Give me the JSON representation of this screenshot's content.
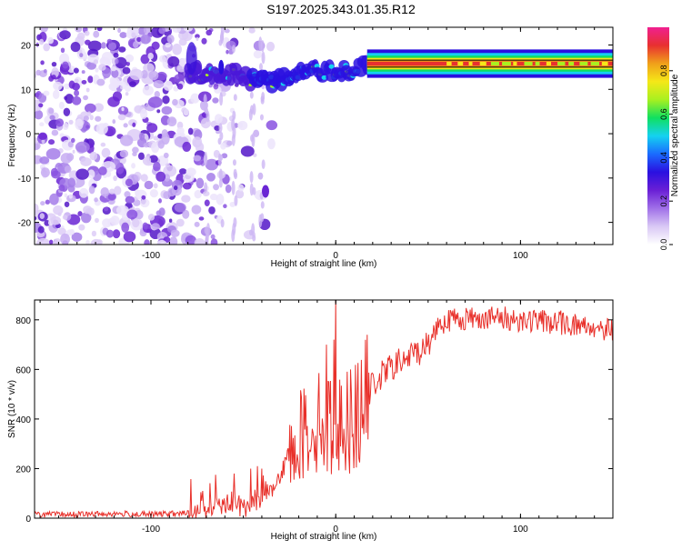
{
  "title": "S197.2025.343.01.35.R12",
  "colors": {
    "snr_line": "#e8302a",
    "colormap": [
      "#ffffff",
      "#d9c8f5",
      "#a070e8",
      "#6a1fd6",
      "#2a10e0",
      "#1a6bff",
      "#14d2f0",
      "#10e060",
      "#a8f020",
      "#f5e818",
      "#f0a01a",
      "#e83030",
      "#f02090"
    ]
  },
  "chart_data": [
    {
      "type": "heatmap",
      "name": "spectrogram",
      "title": "S197.2025.343.01.35.R12",
      "xlabel": "Height of straight line (km)",
      "ylabel": "Frequency (Hz)",
      "xlim": [
        -163,
        150
      ],
      "ylim": [
        -25,
        24
      ],
      "xticks": [
        -100,
        0,
        100
      ],
      "yticks": [
        -20,
        -10,
        0,
        10,
        20
      ],
      "xtick_labels": [
        "-100",
        "0",
        "100"
      ],
      "ytick_labels": [
        "-20",
        "-10",
        "0",
        "10",
        "20"
      ],
      "ridge": [
        {
          "x": -55,
          "y": 13.5
        },
        {
          "x": -40,
          "y": 11.5
        },
        {
          "x": -28,
          "y": 12.5
        },
        {
          "x": -20,
          "y": 13.5
        },
        {
          "x": -10,
          "y": 14.0
        },
        {
          "x": 0,
          "y": 13.5
        },
        {
          "x": 10,
          "y": 14.5
        },
        {
          "x": 18,
          "y": 16.0
        },
        {
          "x": 50,
          "y": 15.8
        },
        {
          "x": 100,
          "y": 15.8
        },
        {
          "x": 150,
          "y": 15.5
        }
      ],
      "colorbar": {
        "label": "Normalized spectral amplitude",
        "range": [
          0,
          1
        ],
        "ticks": [
          0.0,
          0.2,
          0.4,
          0.6,
          0.8
        ],
        "tick_labels": [
          "0.0",
          "0.2",
          "0.4",
          "0.6",
          "0.8"
        ]
      }
    },
    {
      "type": "line",
      "name": "snr",
      "xlabel": "Height of straight line (km)",
      "ylabel": "SNR (10 * v/v)",
      "xlim": [
        -163,
        150
      ],
      "ylim": [
        0,
        880
      ],
      "xticks": [
        -100,
        0,
        100
      ],
      "yticks": [
        0,
        200,
        400,
        600,
        800
      ],
      "xtick_labels": [
        "-100",
        "0",
        "100"
      ],
      "ytick_labels": [
        "0",
        "200",
        "400",
        "600",
        "800"
      ],
      "series": [
        {
          "name": "SNR",
          "x": [
            -163,
            -140,
            -120,
            -100,
            -80,
            -70,
            -60,
            -50,
            -40,
            -30,
            -25,
            -20,
            -15,
            -10,
            -5,
            0,
            5,
            10,
            15,
            20,
            30,
            40,
            50,
            55,
            60,
            80,
            100,
            120,
            140,
            150
          ],
          "y": [
            15,
            15,
            18,
            15,
            20,
            45,
            70,
            40,
            90,
            160,
            260,
            330,
            360,
            390,
            380,
            360,
            390,
            400,
            450,
            540,
            610,
            650,
            700,
            780,
            800,
            810,
            800,
            790,
            770,
            760
          ],
          "spikes": [
            {
              "x": -72,
              "y": 110
            },
            {
              "x": -65,
              "y": 175
            },
            {
              "x": -55,
              "y": 180
            },
            {
              "x": -46,
              "y": 200
            },
            {
              "x": -40,
              "y": 200
            },
            {
              "x": -5,
              "y": 700
            },
            {
              "x": -1,
              "y": 720
            },
            {
              "x": 0,
              "y": 880
            },
            {
              "x": 8,
              "y": 600
            }
          ]
        }
      ]
    }
  ]
}
